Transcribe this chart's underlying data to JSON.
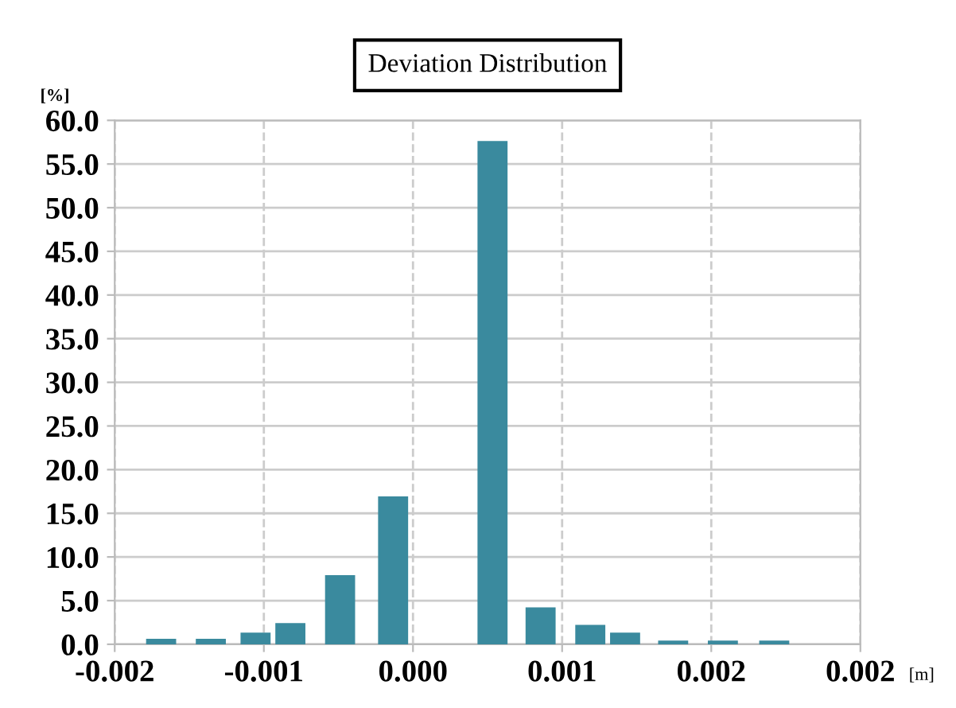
{
  "chart_data": {
    "type": "bar",
    "title": "Deviation Distribution",
    "xlabel": "[m]",
    "ylabel": "[%]",
    "x": [
      -0.00172,
      -0.00142,
      -0.00115,
      -0.00094,
      -0.00064,
      -0.00032,
      0.00028,
      0.00057,
      0.00087,
      0.00108,
      0.00137,
      0.00167,
      0.00198
    ],
    "values": [
      0.5,
      0.5,
      1.2,
      2.3,
      7.8,
      16.8,
      57.5,
      4.1,
      2.1,
      1.2,
      0.3,
      0.3,
      0.3
    ],
    "color": "#3a8a9e",
    "xlim": [
      -0.002,
      0.0025
    ],
    "xticks": [
      {
        "value": -0.002,
        "label": "-0.002"
      },
      {
        "value": -0.0011,
        "label": "-0.001"
      },
      {
        "value": -0.0002,
        "label": "0.000"
      },
      {
        "value": 0.0007,
        "label": "0.001"
      },
      {
        "value": 0.0016,
        "label": "0.002"
      },
      {
        "value": 0.0025,
        "label": "0.002"
      }
    ],
    "ylim": [
      0,
      60
    ],
    "yticks": [
      {
        "value": 0,
        "label": "0.0"
      },
      {
        "value": 5,
        "label": "5.0"
      },
      {
        "value": 10,
        "label": "10.0"
      },
      {
        "value": 15,
        "label": "15.0"
      },
      {
        "value": 20,
        "label": "20.0"
      },
      {
        "value": 25,
        "label": "25.0"
      },
      {
        "value": 30,
        "label": "30.0"
      },
      {
        "value": 35,
        "label": "35.0"
      },
      {
        "value": 40,
        "label": "40.0"
      },
      {
        "value": 45,
        "label": "45.0"
      },
      {
        "value": 50,
        "label": "50.0"
      },
      {
        "value": 55,
        "label": "55.0"
      },
      {
        "value": 60,
        "label": "60.0"
      }
    ],
    "grid": true
  }
}
